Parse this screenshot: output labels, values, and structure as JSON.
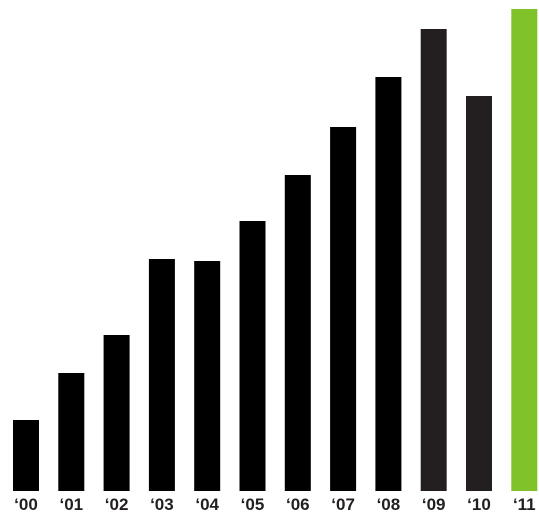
{
  "chart_data": {
    "type": "bar",
    "title": "",
    "xlabel": "",
    "ylabel": "",
    "categories": [
      "‘00",
      "‘01",
      "‘02",
      "‘03",
      "‘04",
      "‘05",
      "‘06",
      "‘07",
      "‘08",
      "‘09",
      "‘10",
      "‘11"
    ],
    "values": [
      71,
      118,
      156,
      232,
      230,
      270,
      316,
      364,
      414,
      462,
      395,
      482
    ],
    "ylim": [
      0,
      482
    ],
    "grid": false,
    "legend": "none",
    "bar_colors": [
      "#000000",
      "#000000",
      "#000000",
      "#000000",
      "#000000",
      "#000000",
      "#000000",
      "#000000",
      "#000000",
      "#231f20",
      "#231f20",
      "#80c22a"
    ]
  }
}
